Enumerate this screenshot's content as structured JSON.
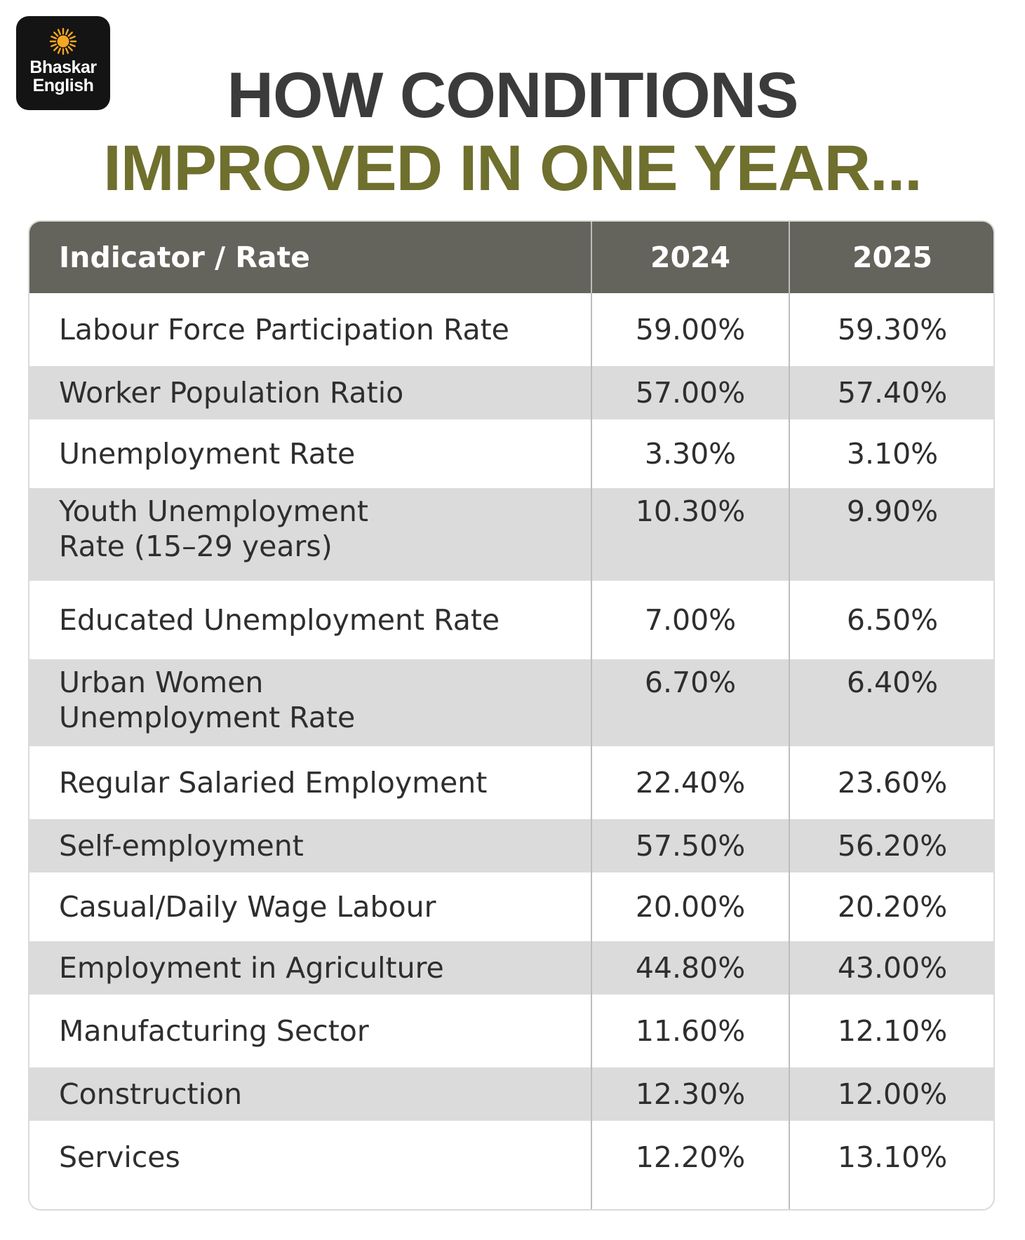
{
  "logo": {
    "line1": "Bhaskar",
    "line2": "English",
    "colors": {
      "bg": "#141414",
      "sun": "#f5a623"
    }
  },
  "title": {
    "line1": "HOW CONDITIONS",
    "line2": "IMPROVED IN ONE YEAR..."
  },
  "chart_data": {
    "type": "table",
    "columns": [
      "Indicator / Rate",
      "2024",
      "2025"
    ],
    "rows": [
      {
        "label_lines": [
          "Labour Force Participation Rate"
        ],
        "v2024": "59.00%",
        "v2025": "59.30%"
      },
      {
        "label_lines": [
          "Worker Population Ratio"
        ],
        "v2024": "57.00%",
        "v2025": "57.40%"
      },
      {
        "label_lines": [
          "Unemployment Rate"
        ],
        "v2024": "3.30%",
        "v2025": "3.10%"
      },
      {
        "label_lines": [
          "Youth Unemployment",
          "Rate (15–29 years)"
        ],
        "v2024": "10.30%",
        "v2025": "9.90%"
      },
      {
        "label_lines": [
          "Educated Unemployment Rate"
        ],
        "v2024": "7.00%",
        "v2025": "6.50%"
      },
      {
        "label_lines": [
          "Urban Women",
          "Unemployment Rate"
        ],
        "v2024": "6.70%",
        "v2025": "6.40%"
      },
      {
        "label_lines": [
          "Regular Salaried Employment"
        ],
        "v2024": "22.40%",
        "v2025": "23.60%"
      },
      {
        "label_lines": [
          "Self-employment"
        ],
        "v2024": "57.50%",
        "v2025": "56.20%"
      },
      {
        "label_lines": [
          "Casual/Daily Wage Labour"
        ],
        "v2024": "20.00%",
        "v2025": "20.20%"
      },
      {
        "label_lines": [
          "Employment in Agriculture"
        ],
        "v2024": "44.80%",
        "v2025": "43.00%"
      },
      {
        "label_lines": [
          "Manufacturing Sector"
        ],
        "v2024": "11.60%",
        "v2025": "12.10%"
      },
      {
        "label_lines": [
          "Construction"
        ],
        "v2024": "12.30%",
        "v2025": "12.00%"
      },
      {
        "label_lines": [
          "Services"
        ],
        "v2024": "12.20%",
        "v2025": "13.10%"
      }
    ],
    "colors": {
      "header_bg": "#64645c",
      "shade_bg": "#dbdbdb",
      "title_dark": "#3b3b3b",
      "title_olive": "#6f6f2e"
    }
  }
}
